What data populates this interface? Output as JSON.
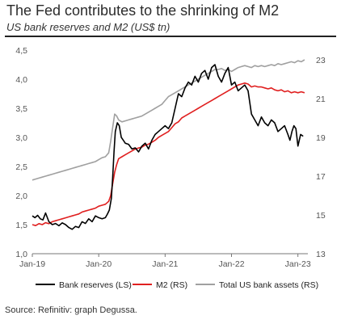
{
  "chart_data": {
    "type": "line",
    "title": "The Fed contributes to the shrinking of M2",
    "subtitle": "US bank reserves and M2 (US$ tn)",
    "source": "Source: Refinitiv: graph Degussa.",
    "left_axis": {
      "ylim": [
        1.0,
        4.5
      ],
      "ticks": [
        "4,5",
        "4,0",
        "3,5",
        "3,0",
        "2,5",
        "2,0",
        "1,5",
        "1,0"
      ],
      "tick_values": [
        4.5,
        4.0,
        3.5,
        3.0,
        2.5,
        2.0,
        1.5,
        1.0
      ]
    },
    "right_axis": {
      "ylim": [
        13,
        23.5
      ],
      "ticks": [
        "23",
        "21",
        "19",
        "17",
        "15",
        "13"
      ],
      "tick_values": [
        23,
        21,
        19,
        17,
        15,
        13
      ]
    },
    "x_axis": {
      "range": [
        2019.0,
        2023.15
      ],
      "ticks": [
        "Jan-19",
        "Jan-20",
        "Jan-21",
        "Jan-22",
        "Jan-23"
      ],
      "tick_values": [
        2019,
        2020,
        2021,
        2022,
        2023
      ]
    },
    "grid": false,
    "legend_position": "bottom",
    "series": [
      {
        "name": "Bank reserves (LS)",
        "axis": "left",
        "color": "#000000",
        "x": [
          2019.0,
          2019.04,
          2019.08,
          2019.12,
          2019.16,
          2019.2,
          2019.25,
          2019.3,
          2019.35,
          2019.4,
          2019.45,
          2019.5,
          2019.55,
          2019.6,
          2019.65,
          2019.7,
          2019.75,
          2019.8,
          2019.85,
          2019.9,
          2019.95,
          2020.0,
          2020.05,
          2020.1,
          2020.13,
          2020.16,
          2020.19,
          2020.21,
          2020.23,
          2020.25,
          2020.28,
          2020.31,
          2020.34,
          2020.37,
          2020.4,
          2020.45,
          2020.5,
          2020.55,
          2020.6,
          2020.65,
          2020.7,
          2020.75,
          2020.8,
          2020.85,
          2020.9,
          2020.95,
          2021.0,
          2021.05,
          2021.1,
          2021.15,
          2021.2,
          2021.25,
          2021.3,
          2021.35,
          2021.4,
          2021.45,
          2021.5,
          2021.55,
          2021.6,
          2021.65,
          2021.7,
          2021.75,
          2021.8,
          2021.85,
          2021.9,
          2021.95,
          2022.0,
          2022.05,
          2022.1,
          2022.15,
          2022.2,
          2022.25,
          2022.3,
          2022.35,
          2022.4,
          2022.45,
          2022.5,
          2022.55,
          2022.6,
          2022.65,
          2022.7,
          2022.75,
          2022.8,
          2022.85,
          2022.88,
          2022.91,
          2022.94,
          2022.97,
          2023.0,
          2023.04,
          2023.08
        ],
        "y": [
          1.65,
          1.62,
          1.66,
          1.6,
          1.58,
          1.7,
          1.55,
          1.5,
          1.52,
          1.48,
          1.53,
          1.5,
          1.45,
          1.42,
          1.47,
          1.45,
          1.55,
          1.52,
          1.6,
          1.55,
          1.65,
          1.62,
          1.6,
          1.62,
          1.68,
          1.75,
          1.95,
          2.3,
          2.75,
          3.1,
          3.25,
          3.2,
          3.0,
          2.95,
          2.9,
          2.88,
          2.8,
          2.82,
          2.75,
          2.85,
          2.9,
          2.8,
          2.95,
          3.05,
          3.1,
          3.15,
          3.2,
          3.15,
          3.25,
          3.5,
          3.75,
          3.7,
          3.85,
          3.95,
          3.9,
          4.05,
          3.95,
          4.1,
          4.15,
          4.0,
          4.2,
          4.25,
          4.05,
          3.95,
          4.1,
          4.2,
          3.9,
          3.95,
          3.8,
          3.85,
          3.9,
          3.8,
          3.4,
          3.3,
          3.2,
          3.35,
          3.25,
          3.2,
          3.3,
          3.25,
          3.1,
          3.15,
          3.2,
          3.05,
          2.95,
          3.1,
          3.2,
          3.15,
          2.85,
          3.05,
          3.02
        ]
      },
      {
        "name": "M2 (RS)",
        "axis": "right",
        "color": "#e02020",
        "x": [
          2019.0,
          2019.05,
          2019.1,
          2019.15,
          2019.2,
          2019.25,
          2019.3,
          2019.35,
          2019.4,
          2019.45,
          2019.5,
          2019.55,
          2019.6,
          2019.65,
          2019.7,
          2019.75,
          2019.8,
          2019.85,
          2019.9,
          2019.95,
          2020.0,
          2020.05,
          2020.1,
          2020.15,
          2020.18,
          2020.21,
          2020.24,
          2020.27,
          2020.3,
          2020.35,
          2020.4,
          2020.45,
          2020.5,
          2020.55,
          2020.6,
          2020.65,
          2020.7,
          2020.75,
          2020.8,
          2020.85,
          2020.9,
          2020.95,
          2021.0,
          2021.05,
          2021.1,
          2021.15,
          2021.2,
          2021.25,
          2021.3,
          2021.35,
          2021.4,
          2021.45,
          2021.5,
          2021.55,
          2021.6,
          2021.65,
          2021.7,
          2021.75,
          2021.8,
          2021.85,
          2021.9,
          2021.95,
          2022.0,
          2022.05,
          2022.1,
          2022.15,
          2022.2,
          2022.25,
          2022.3,
          2022.35,
          2022.4,
          2022.45,
          2022.5,
          2022.55,
          2022.6,
          2022.65,
          2022.7,
          2022.75,
          2022.8,
          2022.85,
          2022.9,
          2022.95,
          2023.0,
          2023.05,
          2023.1
        ],
        "y": [
          14.5,
          14.45,
          14.55,
          14.5,
          14.6,
          14.55,
          14.65,
          14.7,
          14.75,
          14.8,
          14.85,
          14.9,
          14.95,
          15.0,
          15.05,
          15.15,
          15.2,
          15.25,
          15.3,
          15.35,
          15.45,
          15.5,
          15.55,
          15.7,
          16.0,
          16.6,
          17.2,
          17.6,
          17.9,
          18.0,
          18.1,
          18.2,
          18.3,
          18.4,
          18.45,
          18.5,
          18.6,
          18.65,
          18.75,
          18.85,
          19.0,
          19.1,
          19.2,
          19.3,
          19.5,
          19.7,
          19.8,
          20.0,
          20.1,
          20.2,
          20.3,
          20.4,
          20.5,
          20.6,
          20.7,
          20.8,
          20.9,
          21.0,
          21.1,
          21.2,
          21.3,
          21.4,
          21.5,
          21.6,
          21.7,
          21.75,
          21.8,
          21.75,
          21.6,
          21.65,
          21.6,
          21.6,
          21.55,
          21.5,
          21.55,
          21.45,
          21.4,
          21.45,
          21.35,
          21.4,
          21.3,
          21.35,
          21.3,
          21.35,
          21.3
        ]
      },
      {
        "name": "Total US bank assets (RS)",
        "axis": "right",
        "color": "#a0a0a0",
        "x": [
          2019.0,
          2019.05,
          2019.1,
          2019.15,
          2019.2,
          2019.25,
          2019.3,
          2019.35,
          2019.4,
          2019.45,
          2019.5,
          2019.55,
          2019.6,
          2019.65,
          2019.7,
          2019.75,
          2019.8,
          2019.85,
          2019.9,
          2019.95,
          2020.0,
          2020.05,
          2020.1,
          2020.15,
          2020.18,
          2020.21,
          2020.24,
          2020.27,
          2020.3,
          2020.35,
          2020.4,
          2020.45,
          2020.5,
          2020.55,
          2020.6,
          2020.65,
          2020.7,
          2020.75,
          2020.8,
          2020.85,
          2020.9,
          2020.95,
          2021.0,
          2021.05,
          2021.1,
          2021.15,
          2021.2,
          2021.25,
          2021.3,
          2021.35,
          2021.4,
          2021.45,
          2021.5,
          2021.55,
          2021.6,
          2021.65,
          2021.7,
          2021.75,
          2021.8,
          2021.85,
          2021.9,
          2021.95,
          2022.0,
          2022.05,
          2022.1,
          2022.15,
          2022.2,
          2022.25,
          2022.3,
          2022.35,
          2022.4,
          2022.45,
          2022.5,
          2022.55,
          2022.6,
          2022.65,
          2022.7,
          2022.75,
          2022.8,
          2022.85,
          2022.9,
          2022.95,
          2023.0,
          2023.05,
          2023.1
        ],
        "y": [
          16.8,
          16.85,
          16.9,
          16.95,
          17.0,
          17.05,
          17.1,
          17.15,
          17.2,
          17.25,
          17.3,
          17.35,
          17.4,
          17.45,
          17.5,
          17.55,
          17.6,
          17.65,
          17.7,
          17.75,
          17.85,
          17.95,
          18.0,
          18.2,
          18.8,
          19.5,
          20.2,
          20.1,
          19.9,
          19.8,
          19.85,
          19.9,
          19.95,
          20.0,
          20.05,
          20.1,
          20.2,
          20.3,
          20.4,
          20.5,
          20.6,
          20.7,
          20.9,
          21.1,
          21.2,
          21.3,
          21.4,
          21.5,
          21.6,
          21.7,
          21.8,
          21.9,
          22.0,
          22.1,
          22.2,
          22.3,
          22.4,
          22.5,
          22.5,
          22.55,
          22.45,
          22.5,
          22.4,
          22.5,
          22.6,
          22.65,
          22.7,
          22.65,
          22.6,
          22.7,
          22.65,
          22.7,
          22.65,
          22.7,
          22.75,
          22.7,
          22.8,
          22.75,
          22.8,
          22.85,
          22.9,
          22.85,
          22.95,
          22.9,
          23.0
        ]
      }
    ]
  }
}
